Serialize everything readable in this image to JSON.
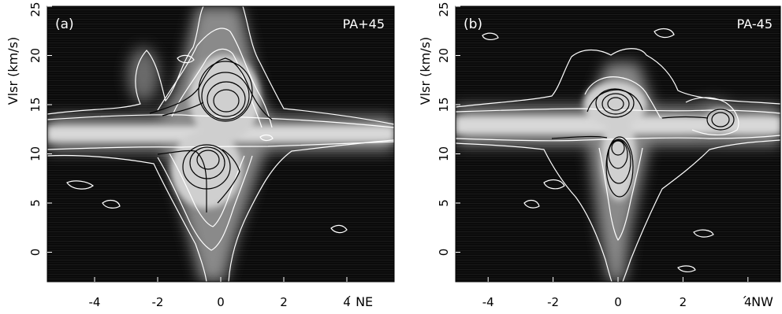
{
  "chart_data": [
    {
      "type": "heatmap",
      "panel_label": "(a)",
      "annotation": "PA+45",
      "ylabel": "Vlsr (km/s)",
      "xlabel_suffix": "´ NE",
      "xlim": [
        -5.5,
        5.5
      ],
      "ylim": [
        -3,
        25
      ],
      "xticks": [
        -4,
        -2,
        0,
        2,
        4
      ],
      "yticks": [
        0,
        5,
        10,
        15,
        20,
        25
      ],
      "xtick_labels": [
        "-4",
        "-2",
        "0",
        "2",
        "4"
      ],
      "ytick_labels": [
        "0",
        "5",
        "10",
        "15",
        "20",
        "25"
      ],
      "features": [
        {
          "kind": "horizontal-ridge",
          "x": [
            -5.5,
            5.5
          ],
          "y": 12.0
        },
        {
          "kind": "vertical-ridge",
          "x": 0.0,
          "y": [
            -3,
            25
          ]
        },
        {
          "kind": "peak",
          "x": 0.1,
          "y": 15.2
        },
        {
          "kind": "peak",
          "x": -0.5,
          "y": 9.5
        },
        {
          "kind": "peak",
          "x": -2.3,
          "y": 18.0
        }
      ]
    },
    {
      "type": "heatmap",
      "panel_label": "(b)",
      "annotation": "PA-45",
      "ylabel": "Vlsr (km/s)",
      "xlabel_suffix": "´ NW",
      "xlim": [
        -5,
        5
      ],
      "ylim": [
        -3,
        25
      ],
      "xticks": [
        -4,
        -2,
        0,
        2,
        4
      ],
      "yticks": [
        0,
        5,
        10,
        15,
        20,
        25
      ],
      "xtick_labels": [
        "-4",
        "-2",
        "0",
        "2",
        "4"
      ],
      "ytick_labels": [
        "0",
        "5",
        "10",
        "15",
        "20",
        "25"
      ],
      "features": [
        {
          "kind": "horizontal-ridge",
          "x": [
            -5,
            5
          ],
          "y": 12.8
        },
        {
          "kind": "vertical-ridge",
          "x": 0.0,
          "y": [
            -3,
            25
          ]
        },
        {
          "kind": "peak",
          "x": -0.2,
          "y": 15.0
        },
        {
          "kind": "peak",
          "x": -0.1,
          "y": 9.5
        },
        {
          "kind": "peak",
          "x": 3.1,
          "y": 13.5
        }
      ]
    }
  ],
  "colors": {
    "background": "#0b0b0b",
    "outer_contour": "#ffffff",
    "inner_contour": "#000000",
    "axis_text": "#000000",
    "annotation_text": "#ffffff"
  }
}
